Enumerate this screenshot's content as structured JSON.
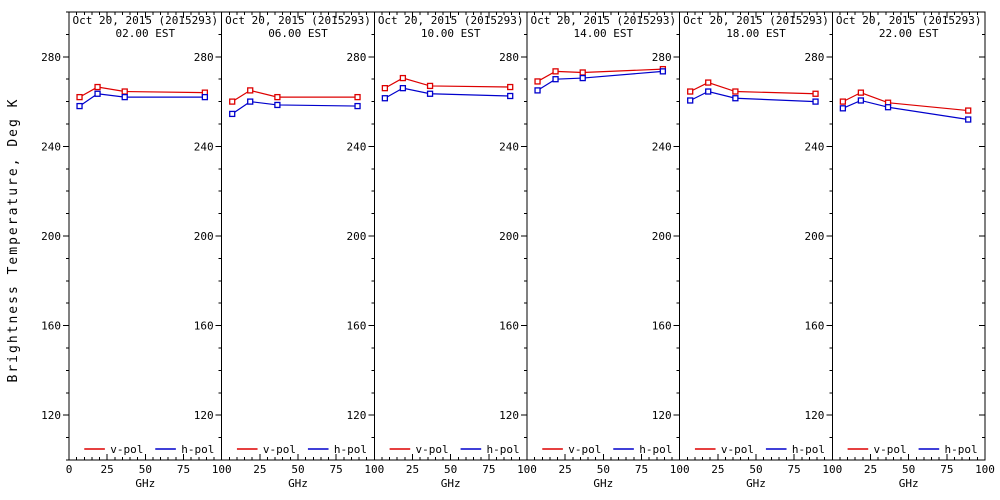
{
  "chart_data": {
    "type": "line",
    "description": "Six-panel brightness temperature vs frequency plot, v-pol and h-pol series, Oct 20 2015 at six times (EST)",
    "xlabel": "GHz",
    "ylabel": "Brightness Temperature, Deg K",
    "x": [
      6.9,
      18.7,
      36.5,
      89
    ],
    "xlim": [
      0,
      100
    ],
    "ylim": [
      100,
      300
    ],
    "x_major_ticks": [
      0,
      25,
      50,
      75,
      100
    ],
    "y_major_ticks": [
      120,
      160,
      200,
      240,
      280
    ],
    "x_minor_step": 5,
    "y_minor_step": 10,
    "grid": false,
    "colors": {
      "v_pol": "#dd0000",
      "h_pol": "#0000cc",
      "axis": "#000000",
      "background": "#ffffff"
    },
    "legend": {
      "position": "bottom-inside-each-panel",
      "entries": [
        {
          "label": "v-pol",
          "color": "#dd0000"
        },
        {
          "label": "h-pol",
          "color": "#0000cc"
        }
      ]
    },
    "panels": [
      {
        "title": "Oct 20, 2015 (2015293)",
        "subtitle": "02.00 EST",
        "series": [
          {
            "name": "v-pol",
            "color": "#dd0000",
            "values": [
              262.0,
              266.5,
              264.5,
              264.0
            ]
          },
          {
            "name": "h-pol",
            "color": "#0000cc",
            "values": [
              258.0,
              263.5,
              262.0,
              262.0
            ]
          }
        ]
      },
      {
        "title": "Oct 20, 2015 (2015293)",
        "subtitle": "06.00 EST",
        "series": [
          {
            "name": "v-pol",
            "color": "#dd0000",
            "values": [
              260.0,
              265.0,
              262.0,
              262.0
            ]
          },
          {
            "name": "h-pol",
            "color": "#0000cc",
            "values": [
              254.5,
              260.0,
              258.5,
              258.0
            ]
          }
        ]
      },
      {
        "title": "Oct 20, 2015 (2015293)",
        "subtitle": "10.00 EST",
        "series": [
          {
            "name": "v-pol",
            "color": "#dd0000",
            "values": [
              266.0,
              270.5,
              267.0,
              266.5
            ]
          },
          {
            "name": "h-pol",
            "color": "#0000cc",
            "values": [
              261.5,
              266.0,
              263.5,
              262.5
            ]
          }
        ]
      },
      {
        "title": "Oct 20, 2015 (2015293)",
        "subtitle": "14.00 EST",
        "series": [
          {
            "name": "v-pol",
            "color": "#dd0000",
            "values": [
              269.0,
              273.5,
              273.0,
              274.5
            ]
          },
          {
            "name": "h-pol",
            "color": "#0000cc",
            "values": [
              265.0,
              270.0,
              270.5,
              273.5
            ]
          }
        ]
      },
      {
        "title": "Oct 20, 2015 (2015293)",
        "subtitle": "18.00 EST",
        "series": [
          {
            "name": "v-pol",
            "color": "#dd0000",
            "values": [
              264.5,
              268.5,
              264.5,
              263.5
            ]
          },
          {
            "name": "h-pol",
            "color": "#0000cc",
            "values": [
              260.5,
              264.5,
              261.5,
              260.0
            ]
          }
        ]
      },
      {
        "title": "Oct 20, 2015 (2015293)",
        "subtitle": "22.00 EST",
        "series": [
          {
            "name": "v-pol",
            "color": "#dd0000",
            "values": [
              260.0,
              264.0,
              259.5,
              256.0
            ]
          },
          {
            "name": "h-pol",
            "color": "#0000cc",
            "values": [
              257.0,
              260.5,
              257.5,
              252.0
            ]
          }
        ]
      }
    ]
  }
}
